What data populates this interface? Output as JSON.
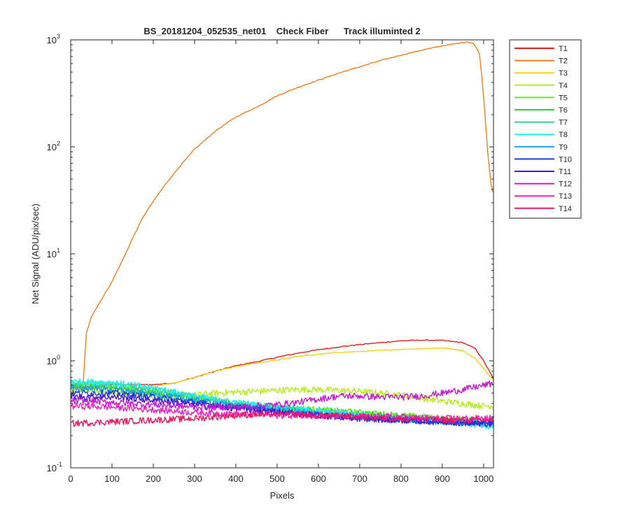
{
  "chart_data": {
    "type": "line",
    "title": "BS_20181204_052535_net01    Check Fiber      Track illuminted 2",
    "xlabel": "Pixels",
    "ylabel": "Net Signal (ADU/pix/sec)",
    "xlim": [
      0,
      1024
    ],
    "ylim": [
      0.1,
      1000
    ],
    "yscale": "log",
    "grid": false,
    "legend_position": "outside-right",
    "x_ticks": [
      0,
      100,
      200,
      300,
      400,
      500,
      600,
      700,
      800,
      900,
      1000
    ],
    "x_tick_labels": [
      "0",
      "100",
      "200",
      "300",
      "400",
      "500",
      "600",
      "700",
      "800",
      "900",
      "1000"
    ],
    "y_ticks": [
      0.1,
      1,
      10,
      100,
      1000
    ],
    "y_tick_labels": [
      {
        "base": "10",
        "exp": "-1"
      },
      {
        "base": "10",
        "exp": "0"
      },
      {
        "base": "10",
        "exp": "1"
      },
      {
        "base": "10",
        "exp": "2"
      },
      {
        "base": "10",
        "exp": "3"
      }
    ],
    "series": [
      {
        "name": "T1",
        "color": "#e0201c",
        "x": [
          0,
          50,
          100,
          150,
          200,
          250,
          300,
          350,
          400,
          450,
          500,
          550,
          600,
          650,
          700,
          750,
          800,
          850,
          900,
          950,
          980,
          1000,
          1024
        ],
        "y": [
          0.55,
          0.58,
          0.6,
          0.6,
          0.6,
          0.62,
          0.7,
          0.8,
          0.9,
          0.98,
          1.08,
          1.18,
          1.27,
          1.35,
          1.42,
          1.48,
          1.54,
          1.56,
          1.55,
          1.48,
          1.3,
          1.0,
          0.68
        ]
      },
      {
        "name": "T2",
        "color": "#f57f1e",
        "x": [
          30,
          38,
          50,
          70,
          100,
          130,
          150,
          175,
          200,
          230,
          260,
          300,
          350,
          400,
          450,
          500,
          550,
          600,
          650,
          700,
          750,
          800,
          850,
          900,
          940,
          960,
          975,
          990,
          1000,
          1010,
          1018,
          1024
        ],
        "y": [
          0.6,
          1.8,
          2.6,
          3.5,
          5.5,
          9.5,
          14,
          22,
          31,
          45,
          63,
          95,
          140,
          190,
          235,
          300,
          360,
          420,
          490,
          560,
          640,
          720,
          800,
          880,
          930,
          960,
          930,
          750,
          300,
          90,
          45,
          35
        ]
      },
      {
        "name": "T3",
        "color": "#f9d015",
        "x": [
          0,
          50,
          100,
          150,
          200,
          250,
          300,
          350,
          400,
          450,
          500,
          550,
          600,
          650,
          700,
          750,
          800,
          850,
          900,
          950,
          980,
          1000,
          1024
        ],
        "y": [
          0.5,
          0.55,
          0.55,
          0.55,
          0.58,
          0.62,
          0.7,
          0.8,
          0.88,
          0.95,
          1.02,
          1.1,
          1.15,
          1.2,
          1.22,
          1.25,
          1.28,
          1.3,
          1.32,
          1.25,
          1.05,
          0.85,
          0.65
        ]
      },
      {
        "name": "T4",
        "color": "#b4f01a",
        "x": [
          0,
          50,
          100,
          150,
          200,
          250,
          300,
          350,
          400,
          450,
          500,
          550,
          600,
          650,
          700,
          750,
          800,
          850,
          900,
          950,
          1000,
          1024
        ],
        "y": [
          0.55,
          0.55,
          0.5,
          0.48,
          0.47,
          0.47,
          0.48,
          0.5,
          0.51,
          0.52,
          0.53,
          0.54,
          0.54,
          0.53,
          0.52,
          0.5,
          0.48,
          0.45,
          0.42,
          0.4,
          0.38,
          0.38
        ]
      },
      {
        "name": "T5",
        "color": "#5dee22",
        "x": [
          0,
          100,
          200,
          300,
          400,
          500,
          600,
          700,
          800,
          900,
          1000,
          1024
        ],
        "y": [
          0.6,
          0.57,
          0.52,
          0.45,
          0.4,
          0.37,
          0.35,
          0.33,
          0.31,
          0.29,
          0.28,
          0.28
        ]
      },
      {
        "name": "T6",
        "color": "#28d42f",
        "x": [
          0,
          100,
          200,
          300,
          400,
          500,
          600,
          700,
          800,
          900,
          1000,
          1024
        ],
        "y": [
          0.58,
          0.55,
          0.5,
          0.44,
          0.39,
          0.36,
          0.34,
          0.32,
          0.3,
          0.28,
          0.27,
          0.27
        ]
      },
      {
        "name": "T7",
        "color": "#2ed19e",
        "x": [
          0,
          100,
          200,
          300,
          400,
          500,
          600,
          700,
          800,
          900,
          1000,
          1024
        ],
        "y": [
          0.62,
          0.6,
          0.54,
          0.46,
          0.4,
          0.36,
          0.33,
          0.31,
          0.29,
          0.28,
          0.26,
          0.25
        ]
      },
      {
        "name": "T8",
        "color": "#1ff0f0",
        "x": [
          0,
          100,
          200,
          300,
          400,
          500,
          600,
          700,
          800,
          900,
          1000,
          1024
        ],
        "y": [
          0.64,
          0.63,
          0.56,
          0.47,
          0.41,
          0.37,
          0.34,
          0.31,
          0.29,
          0.27,
          0.25,
          0.24
        ]
      },
      {
        "name": "T9",
        "color": "#1f9ef2",
        "x": [
          0,
          100,
          200,
          300,
          400,
          500,
          600,
          700,
          800,
          900,
          1000,
          1024
        ],
        "y": [
          0.56,
          0.54,
          0.49,
          0.43,
          0.38,
          0.35,
          0.32,
          0.3,
          0.28,
          0.27,
          0.26,
          0.26
        ]
      },
      {
        "name": "T10",
        "color": "#1a3fd8",
        "x": [
          0,
          100,
          200,
          300,
          400,
          500,
          600,
          700,
          800,
          900,
          1000,
          1024
        ],
        "y": [
          0.5,
          0.5,
          0.46,
          0.41,
          0.37,
          0.34,
          0.31,
          0.29,
          0.28,
          0.27,
          0.26,
          0.26
        ]
      },
      {
        "name": "T11",
        "color": "#4a16d8",
        "x": [
          0,
          100,
          200,
          300,
          400,
          500,
          600,
          700,
          800,
          900,
          1000,
          1024
        ],
        "y": [
          0.46,
          0.46,
          0.43,
          0.39,
          0.36,
          0.33,
          0.31,
          0.29,
          0.28,
          0.27,
          0.26,
          0.26
        ]
      },
      {
        "name": "T12",
        "color": "#cc16d8",
        "x": [
          0,
          50,
          100,
          150,
          200,
          250,
          300,
          350,
          400,
          450,
          500,
          550,
          600,
          650,
          700,
          750,
          800,
          850,
          900,
          950,
          1000,
          1024
        ],
        "y": [
          0.42,
          0.42,
          0.41,
          0.4,
          0.39,
          0.38,
          0.37,
          0.37,
          0.37,
          0.38,
          0.39,
          0.41,
          0.44,
          0.47,
          0.47,
          0.46,
          0.46,
          0.47,
          0.5,
          0.54,
          0.59,
          0.62
        ]
      },
      {
        "name": "T13",
        "color": "#f21fbe",
        "x": [
          0,
          100,
          200,
          300,
          400,
          500,
          600,
          700,
          800,
          900,
          1000,
          1024
        ],
        "y": [
          0.38,
          0.37,
          0.35,
          0.33,
          0.32,
          0.31,
          0.31,
          0.3,
          0.3,
          0.29,
          0.29,
          0.29
        ]
      },
      {
        "name": "T14",
        "color": "#f2155f",
        "x": [
          0,
          100,
          200,
          300,
          400,
          500,
          600,
          700,
          800,
          900,
          1000,
          1024
        ],
        "y": [
          0.26,
          0.27,
          0.28,
          0.29,
          0.31,
          0.32,
          0.31,
          0.3,
          0.29,
          0.28,
          0.28,
          0.28
        ]
      }
    ]
  }
}
